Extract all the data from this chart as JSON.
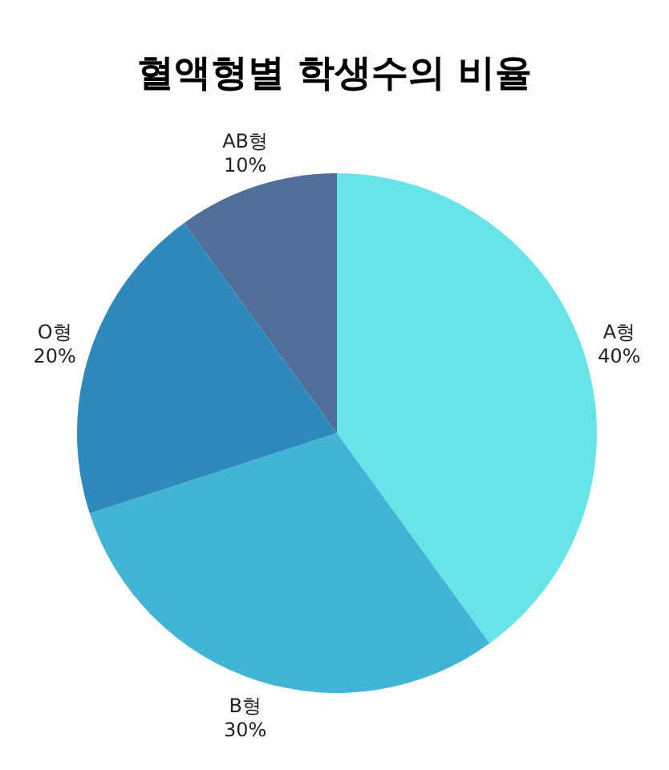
{
  "chart_data": {
    "type": "pie",
    "title": "혈액형별 학생수의 비율",
    "categories": [
      "A형",
      "B형",
      "O형",
      "AB형"
    ],
    "values": [
      40,
      30,
      20,
      10
    ],
    "colors": [
      "#68e3e8",
      "#42b4d6",
      "#2e8aba",
      "#4f6e9a"
    ],
    "value_labels": [
      "40%",
      "30%",
      "20%",
      "10%"
    ]
  }
}
